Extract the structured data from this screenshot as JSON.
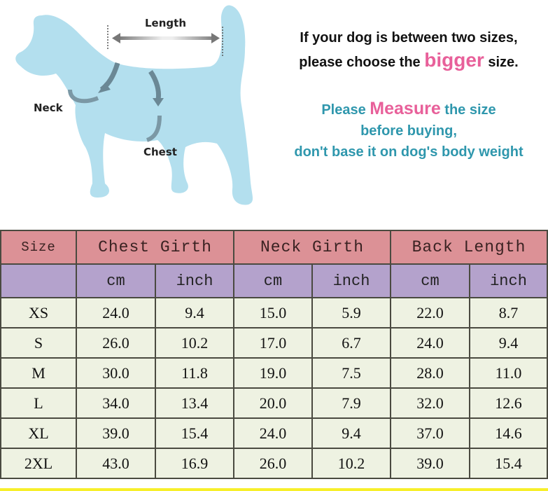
{
  "diagram": {
    "labels": {
      "length": "Length",
      "neck": "Neck",
      "chest": "Chest"
    }
  },
  "notes": {
    "line1_pre": "If your dog is between two sizes,",
    "line2_pre": "please choose the ",
    "line2_emph": "bigger",
    "line2_post": " size.",
    "line3_pre": "Please ",
    "line3_emph": "Measure",
    "line3_post": " the size",
    "line4": "before buying,",
    "line5": "don't base it on dog's body weight"
  },
  "colors": {
    "header": "#dc9196",
    "subheader": "#b4a2cc",
    "rows": "#eef2e2",
    "dog": "#b3dfee",
    "emphasis": "#e8609a",
    "teal_text": "#2f97ad"
  },
  "table": {
    "size_header": "Size",
    "groups": [
      "Chest Girth",
      "Neck Girth",
      "Back Length"
    ],
    "units": [
      "cm",
      "inch",
      "cm",
      "inch",
      "cm",
      "inch"
    ],
    "rows": [
      {
        "size": "XS",
        "values": [
          "24.0",
          "9.4",
          "15.0",
          "5.9",
          "22.0",
          "8.7"
        ]
      },
      {
        "size": "S",
        "values": [
          "26.0",
          "10.2",
          "17.0",
          "6.7",
          "24.0",
          "9.4"
        ]
      },
      {
        "size": "M",
        "values": [
          "30.0",
          "11.8",
          "19.0",
          "7.5",
          "28.0",
          "11.0"
        ]
      },
      {
        "size": "L",
        "values": [
          "34.0",
          "13.4",
          "20.0",
          "7.9",
          "32.0",
          "12.6"
        ]
      },
      {
        "size": "XL",
        "values": [
          "39.0",
          "15.4",
          "24.0",
          "9.4",
          "37.0",
          "14.6"
        ]
      },
      {
        "size": "2XL",
        "values": [
          "43.0",
          "16.9",
          "26.0",
          "10.2",
          "39.0",
          "15.4"
        ]
      }
    ]
  }
}
